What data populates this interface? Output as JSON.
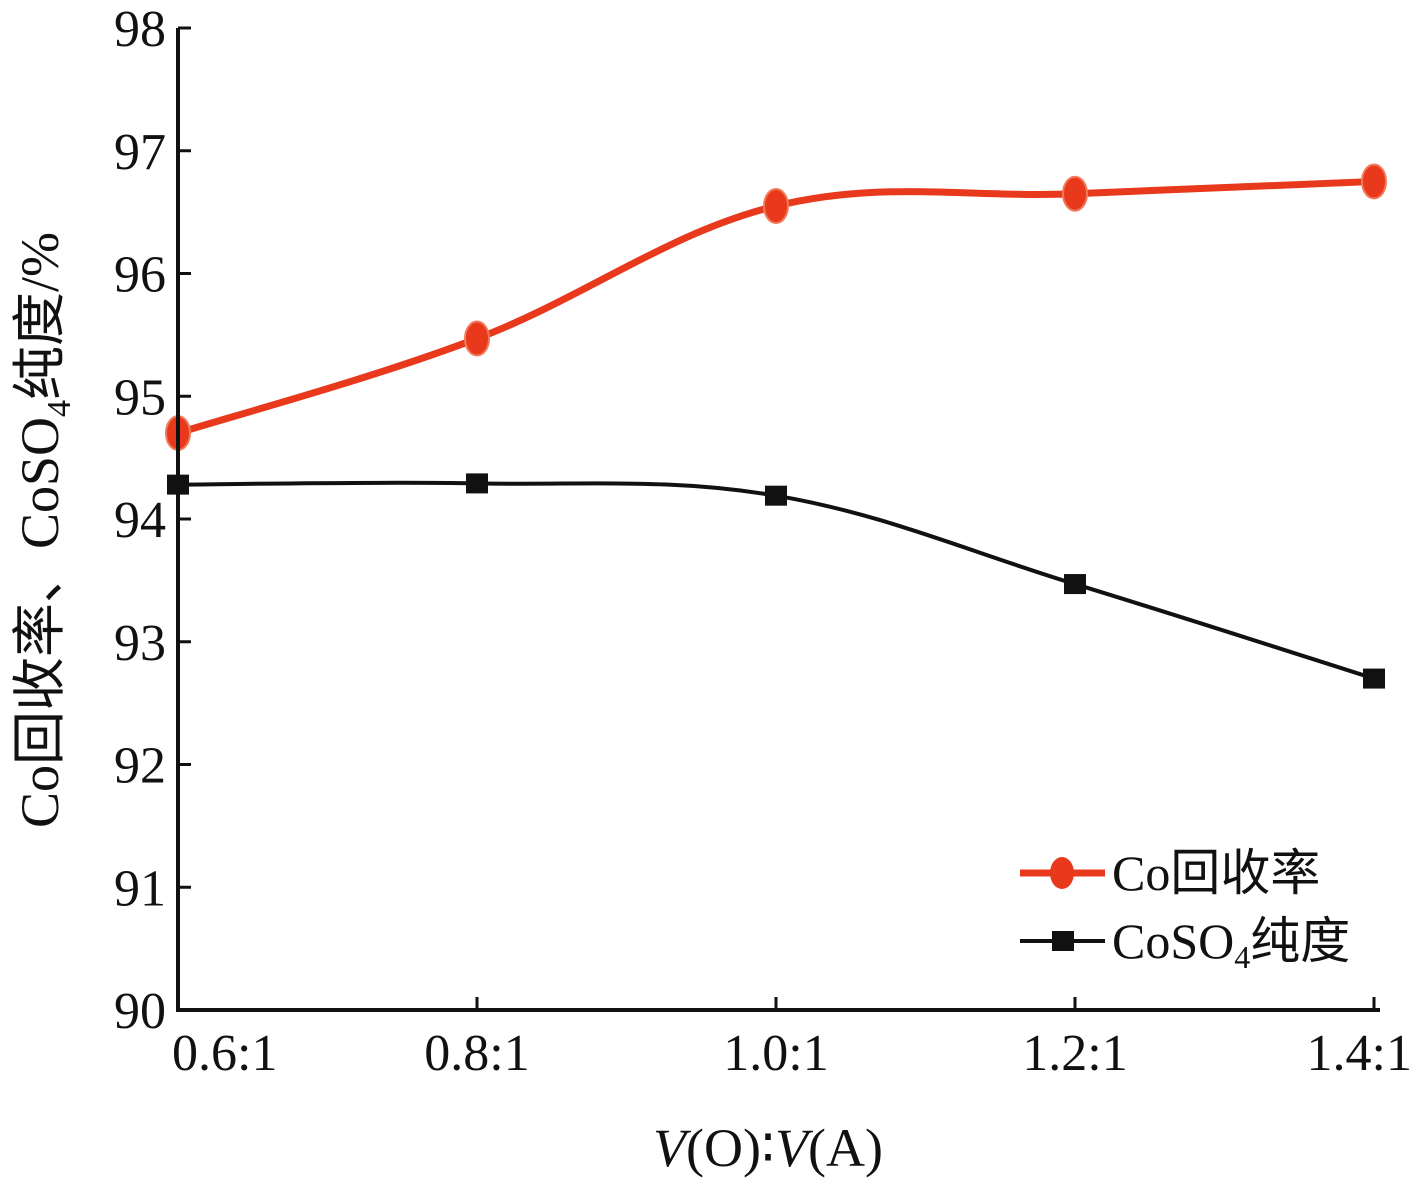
{
  "chart_data": {
    "type": "line",
    "xlabel": {
      "v1": "V",
      "mid1": "(O)∶",
      "v2": "V",
      "mid2": "(A)"
    },
    "ylabel": {
      "pre": "Co回收率、CoSO",
      "sub": "4",
      "post": "纯度/%"
    },
    "categories": [
      "0.6:1",
      "0.8:1",
      "1.0:1",
      "1.2:1",
      "1.4:1"
    ],
    "ylim": [
      90,
      98
    ],
    "yticks": [
      "90",
      "91",
      "92",
      "93",
      "94",
      "95",
      "96",
      "97",
      "98"
    ],
    "grid": false,
    "legend_position": "bottom-right",
    "series": [
      {
        "name": "Co回收率",
        "legend": {
          "pre": "Co回收率",
          "sub": "",
          "post": ""
        },
        "color": "#e8391c",
        "marker": "circle",
        "values": [
          94.7,
          95.47,
          96.55,
          96.65,
          96.75
        ]
      },
      {
        "name": "CoSO4纯度",
        "legend": {
          "pre": "CoSO",
          "sub": "4",
          "post": "纯度"
        },
        "color": "#111111",
        "marker": "square",
        "values": [
          94.28,
          94.29,
          94.19,
          93.47,
          92.7
        ]
      }
    ]
  }
}
